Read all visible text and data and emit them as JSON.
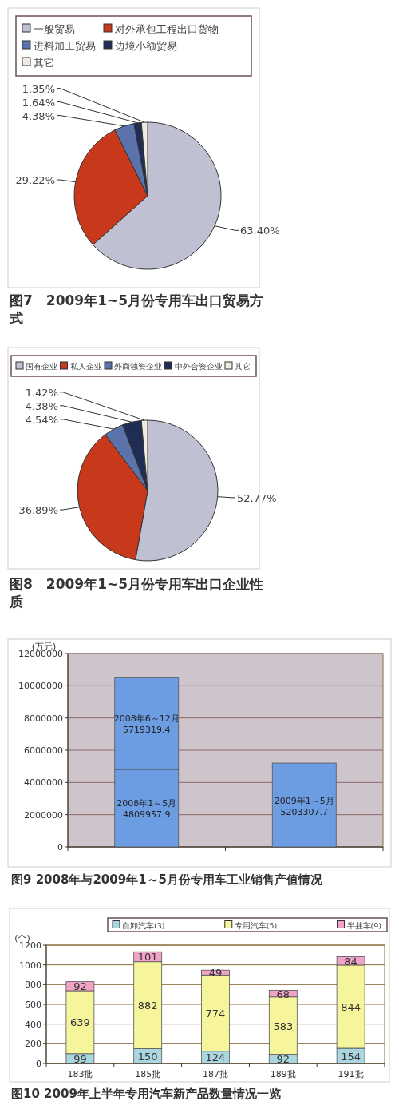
{
  "chart_data": [
    {
      "type": "pie",
      "title": "图7　2009年1~5月份专用车出口贸易方式",
      "legend": "top",
      "categories": [
        "一般贸易",
        "对外承包工程出口货物",
        "进料加工贸易",
        "边境小额贸易",
        "其它"
      ],
      "values": [
        63.4,
        29.22,
        4.38,
        1.64,
        1.35
      ],
      "value_labels": [
        "63.40%",
        "29.22%",
        "4.38%",
        "1.64%",
        "1.35%"
      ],
      "colors": [
        "#bfc1d2",
        "#c8391b",
        "#5b72aa",
        "#1f2d55",
        "#efebe0"
      ]
    },
    {
      "type": "pie",
      "title": "图8　2009年1~5月份专用车出口企业性质",
      "legend": "top",
      "categories": [
        "国有企业",
        "私人企业",
        "外商独资企业",
        "中外合资企业",
        "其它"
      ],
      "values": [
        52.77,
        36.89,
        4.54,
        4.38,
        1.42
      ],
      "value_labels": [
        "52.77%",
        "36.89%",
        "4.54%",
        "4.38%",
        "1.42%"
      ],
      "colors": [
        "#bfc1d2",
        "#c8391b",
        "#5b72aa",
        "#1f2d55",
        "#efebe0"
      ]
    },
    {
      "type": "bar",
      "title": "图9 2008年与2009年1～5月份专用车工业销售产值情况",
      "ylabel": "(万元)",
      "stacked": true,
      "data_labels": true,
      "grid": "y",
      "categories": [
        null,
        null
      ],
      "ylim": [
        0,
        12000000
      ],
      "yticks": [
        0,
        2000000,
        4000000,
        6000000,
        8000000,
        10000000,
        12000000
      ],
      "series": [
        {
          "name": "2008年1～5月",
          "color": "#6c9de2",
          "values": [
            4809957.9,
            null
          ]
        },
        {
          "name": "2008年6～12月",
          "color": "#6c9de2",
          "values": [
            5719319.4,
            null
          ]
        },
        {
          "name": "2009年1～5月",
          "color": "#6c9de2",
          "values": [
            null,
            5203307.7
          ]
        }
      ]
    },
    {
      "type": "bar",
      "title": "图10 2009年上半年专用汽车新产品数量情况一览",
      "ylabel": "(个)",
      "stacked": true,
      "data_labels": true,
      "grid": "y",
      "legend": "top",
      "categories": [
        "183批",
        "185批",
        "187批",
        "189批",
        "191批"
      ],
      "ylim": [
        0,
        1200
      ],
      "yticks": [
        0,
        200,
        400,
        600,
        800,
        1000,
        1200
      ],
      "series": [
        {
          "name": "自卸汽车(3)",
          "color": "#a9d6df",
          "values": [
            99,
            150,
            124,
            92,
            154
          ]
        },
        {
          "name": "专用汽车(5)",
          "color": "#f6f59c",
          "values": [
            639,
            882,
            774,
            583,
            844
          ]
        },
        {
          "name": "半挂车(9)",
          "color": "#f2a3c8",
          "values": [
            92,
            101,
            49,
            68,
            84
          ]
        }
      ]
    }
  ]
}
